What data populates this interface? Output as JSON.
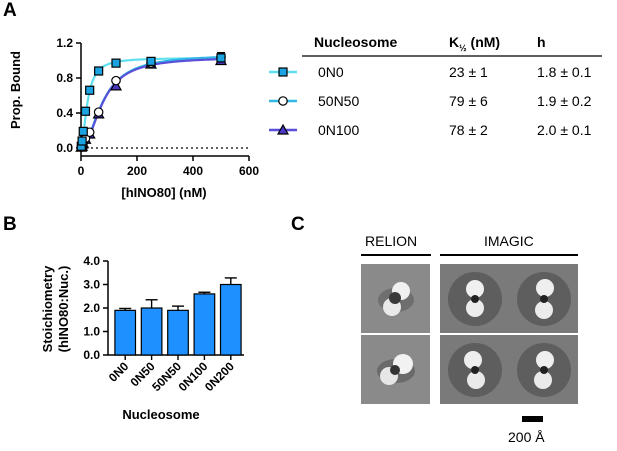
{
  "panels": {
    "a": "A",
    "b": "B",
    "c": "C"
  },
  "colors": {
    "0N0": "#1aa3e0",
    "50N50": "#1c8ed8",
    "0N100": "#4b39c6",
    "fit_0N0": "#5fe0f0",
    "fit_50N50": "#30b8e6",
    "fit_0N100": "#5a4fd8",
    "bar": "#1e90ff"
  },
  "chart_data": [
    {
      "type": "scatter",
      "xlabel": "[hINO80] (nM)",
      "ylabel": "Prop. Bound",
      "xlim": [
        0,
        600
      ],
      "ylim": [
        0,
        1.2
      ],
      "xticks": [
        "0",
        "200",
        "400",
        "600"
      ],
      "yticks": [
        "0.0",
        "0.4",
        "0.8",
        "1.2"
      ],
      "reference_line": {
        "y": 0.0,
        "style": "dotted"
      },
      "fit": "hill",
      "series": [
        {
          "name": "0N0",
          "marker": "square",
          "x": [
            1,
            4,
            8,
            16,
            31,
            63,
            125,
            250,
            500
          ],
          "y": [
            0.02,
            0.08,
            0.19,
            0.42,
            0.66,
            0.88,
            0.97,
            0.99,
            1.03
          ],
          "kd": 23,
          "h": 1.8,
          "bmax": 1.03
        },
        {
          "name": "50N50",
          "marker": "circle",
          "x": [
            1,
            4,
            8,
            16,
            31,
            63,
            125,
            250,
            500
          ],
          "y": [
            0.01,
            0.03,
            0.06,
            0.11,
            0.18,
            0.41,
            0.77,
            0.97,
            1.04
          ],
          "kd": 79,
          "h": 1.9,
          "bmax": 1.07
        },
        {
          "name": "0N100",
          "marker": "triangle",
          "x": [
            1,
            4,
            8,
            16,
            31,
            63,
            125,
            250,
            500
          ],
          "y": [
            0.01,
            0.02,
            0.05,
            0.1,
            0.16,
            0.39,
            0.71,
            0.96,
            1.0
          ],
          "kd": 78,
          "h": 2.0,
          "bmax": 1.04
        }
      ],
      "error_bars": [
        {
          "series": "0N0",
          "x": 500,
          "err": 0.06
        }
      ]
    },
    {
      "type": "table",
      "headers": {
        "col1": "Nucleosome",
        "col2_main": "K",
        "col2_sub": "½",
        "col2_rest": " (nM)",
        "col3": "h"
      },
      "rows": [
        {
          "name": "0N0",
          "kd": "23 ± 1",
          "h": "1.8 ± 0.1"
        },
        {
          "name": "50N50",
          "kd": "79 ± 6",
          "h": "1.9 ± 0.2"
        },
        {
          "name": "0N100",
          "kd": "78 ± 2",
          "h": "2.0 ± 0.1"
        }
      ]
    },
    {
      "type": "bar",
      "categories": [
        "0N0",
        "0N50",
        "50N50",
        "0N100",
        "0N200"
      ],
      "values": [
        1.9,
        2.0,
        1.9,
        2.6,
        3.0
      ],
      "errors": [
        0.08,
        0.35,
        0.18,
        0.07,
        0.28
      ],
      "xlabel": "Nucleosome",
      "ylabel_lines": [
        "Stoichiometry",
        "(hINO80:Nuc.)"
      ],
      "ylim": [
        0,
        4.0
      ],
      "yticks": [
        "0.0",
        "1.0",
        "2.0",
        "3.0",
        "4.0"
      ]
    }
  ],
  "em": {
    "relion_label": "RELION",
    "imagic_label": "IMAGIC",
    "scale_label": "200 Å"
  }
}
